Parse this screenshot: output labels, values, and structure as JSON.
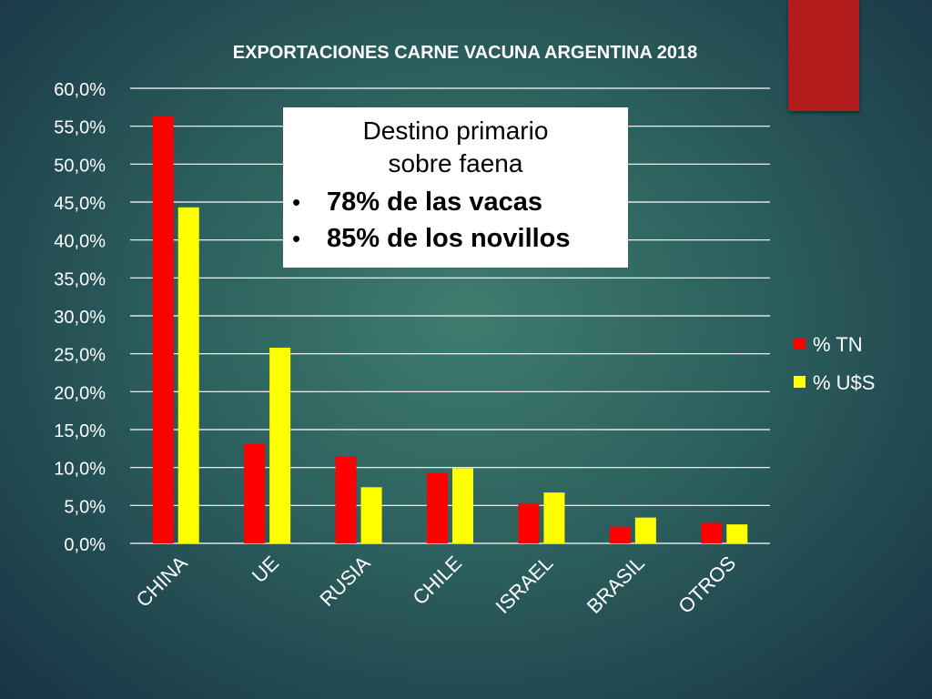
{
  "chart_data": {
    "type": "bar",
    "title": "EXPORTACIONES CARNE VACUNA ARGENTINA 2018",
    "categories": [
      "CHINA",
      "UE",
      "RUSIA",
      "CHILE",
      "ISRAEL",
      "BRASIL",
      "OTROS"
    ],
    "series": [
      {
        "name": "% TN",
        "color": "#ff0000",
        "values": [
          56.3,
          13.1,
          11.4,
          9.3,
          5.3,
          2.2,
          2.7
        ]
      },
      {
        "name": "% U$S",
        "color": "#ffff00",
        "values": [
          44.3,
          25.8,
          7.4,
          9.9,
          6.7,
          3.4,
          2.5
        ]
      }
    ],
    "ylim": [
      0,
      60
    ],
    "yticks": [
      "0,0%",
      "5,0%",
      "10,0%",
      "15,0%",
      "20,0%",
      "25,0%",
      "30,0%",
      "35,0%",
      "40,0%",
      "45,0%",
      "50,0%",
      "55,0%",
      "60,0%"
    ],
    "grid": true,
    "legend_position": "right",
    "xlabel": "",
    "ylabel": ""
  },
  "annotation": {
    "title_line1": "Destino primario",
    "title_line2": "sobre faena",
    "bullet_symbol": "•",
    "items": [
      "78% de las vacas",
      "85% de los novillos"
    ]
  },
  "colors": {
    "accent_block": "#b31c1c",
    "gridline": "#ffffff",
    "text": "#ffffff"
  }
}
